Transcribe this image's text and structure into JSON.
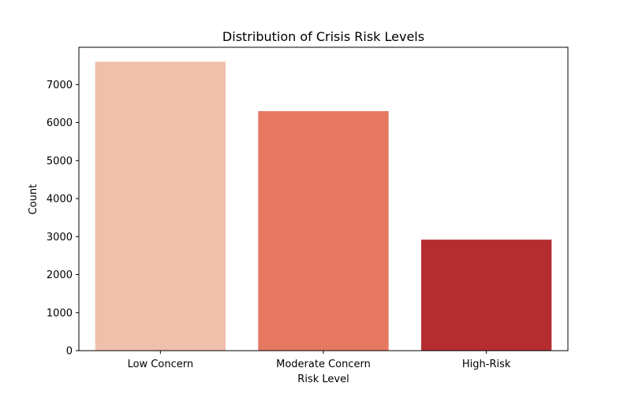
{
  "chart_data": {
    "type": "bar",
    "title": "Distribution of Crisis Risk Levels",
    "xlabel": "Risk Level",
    "ylabel": "Count",
    "categories": [
      "Low Concern",
      "Moderate Concern",
      "High-Risk"
    ],
    "values": [
      7600,
      6300,
      2920
    ],
    "colors": [
      "#f0c0ab",
      "#e67862",
      "#b52d31"
    ],
    "ylim": [
      0,
      7980
    ],
    "yticks": [
      0,
      1000,
      2000,
      3000,
      4000,
      5000,
      6000,
      7000
    ],
    "grid": false,
    "legend": "none"
  }
}
